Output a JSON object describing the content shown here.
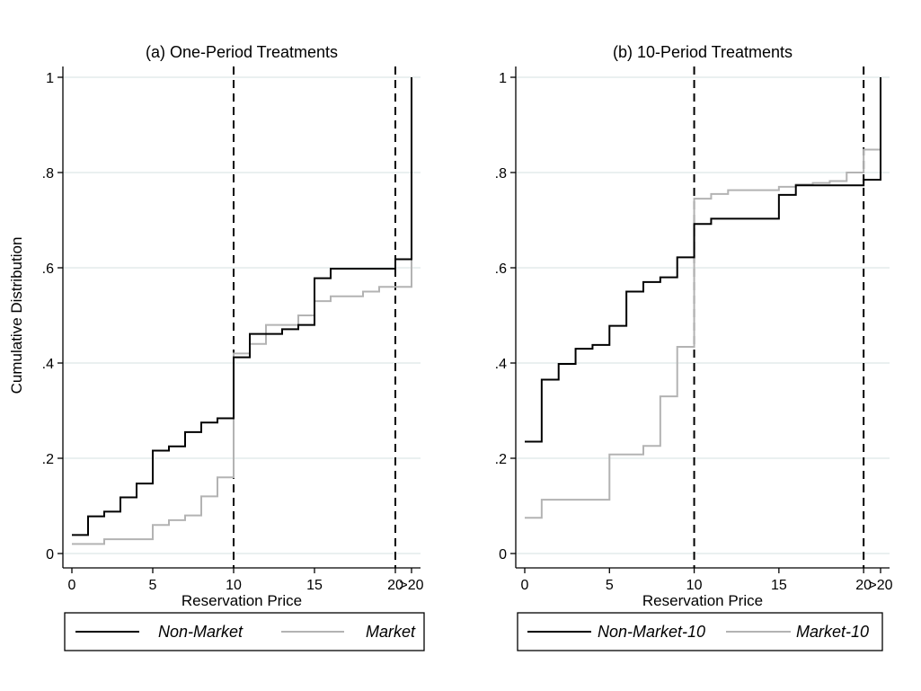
{
  "chart_data": [
    {
      "type": "line",
      "title": "(a) One-Period Treatments",
      "xlabel": "Reservation Price",
      "ylabel": "Cumulative Distribution",
      "xlim": [
        0,
        21
      ],
      "ylim": [
        0,
        1
      ],
      "x_ticks": [
        {
          "value": 0,
          "label": "0"
        },
        {
          "value": 5,
          "label": "5"
        },
        {
          "value": 10,
          "label": "10"
        },
        {
          "value": 15,
          "label": "15"
        },
        {
          "value": 20,
          "label": "20"
        },
        {
          "value": 21,
          "label": ">20"
        }
      ],
      "y_ticks": [
        {
          "value": 0,
          "label": "0"
        },
        {
          "value": 0.2,
          "label": ".2"
        },
        {
          "value": 0.4,
          "label": ".4"
        },
        {
          "value": 0.6,
          "label": ".6"
        },
        {
          "value": 0.8,
          "label": ".8"
        },
        {
          "value": 1,
          "label": "1"
        }
      ],
      "vlines": [
        10,
        20
      ],
      "grid": true,
      "legend_position": "bottom",
      "series": [
        {
          "name": "Non-Market",
          "color": "#000000",
          "x": [
            0,
            1,
            2,
            3,
            4,
            5,
            6,
            7,
            8,
            9,
            10,
            11,
            12,
            13,
            14,
            15,
            16,
            17,
            18,
            19,
            20,
            21
          ],
          "y": [
            0.039,
            0.078,
            0.088,
            0.118,
            0.147,
            0.216,
            0.225,
            0.255,
            0.275,
            0.284,
            0.412,
            0.461,
            0.461,
            0.471,
            0.48,
            0.578,
            0.598,
            0.598,
            0.598,
            0.598,
            0.618,
            1.0
          ]
        },
        {
          "name": "Market",
          "color": "#b3b3b3",
          "x": [
            0,
            1,
            2,
            3,
            4,
            5,
            6,
            7,
            8,
            9,
            10,
            11,
            12,
            13,
            14,
            15,
            16,
            17,
            18,
            19,
            20,
            21
          ],
          "y": [
            0.02,
            0.02,
            0.03,
            0.03,
            0.03,
            0.06,
            0.07,
            0.08,
            0.12,
            0.16,
            0.42,
            0.44,
            0.48,
            0.48,
            0.5,
            0.53,
            0.54,
            0.54,
            0.55,
            0.56,
            0.56,
            1.0
          ]
        }
      ]
    },
    {
      "type": "line",
      "title": "(b) 10-Period Treatments",
      "xlabel": "Reservation Price",
      "ylabel": "",
      "xlim": [
        0,
        21
      ],
      "ylim": [
        0,
        1
      ],
      "x_ticks": [
        {
          "value": 0,
          "label": "0"
        },
        {
          "value": 5,
          "label": "5"
        },
        {
          "value": 10,
          "label": "10"
        },
        {
          "value": 15,
          "label": "15"
        },
        {
          "value": 20,
          "label": "20"
        },
        {
          "value": 21,
          "label": ">20"
        }
      ],
      "y_ticks": [
        {
          "value": 0,
          "label": "0"
        },
        {
          "value": 0.2,
          "label": ".2"
        },
        {
          "value": 0.4,
          "label": ".4"
        },
        {
          "value": 0.6,
          "label": ".6"
        },
        {
          "value": 0.8,
          "label": ".8"
        },
        {
          "value": 1,
          "label": "1"
        }
      ],
      "vlines": [
        10,
        20
      ],
      "grid": true,
      "legend_position": "bottom",
      "series": [
        {
          "name": "Non-Market-10",
          "color": "#000000",
          "x": [
            0,
            1,
            2,
            3,
            4,
            5,
            6,
            7,
            8,
            9,
            10,
            11,
            12,
            13,
            14,
            15,
            16,
            17,
            18,
            19,
            20,
            21
          ],
          "y": [
            0.235,
            0.365,
            0.398,
            0.43,
            0.438,
            0.478,
            0.55,
            0.57,
            0.58,
            0.622,
            0.692,
            0.703,
            0.703,
            0.703,
            0.703,
            0.753,
            0.773,
            0.773,
            0.773,
            0.773,
            0.785,
            1.0
          ]
        },
        {
          "name": "Market-10",
          "color": "#b3b3b3",
          "x": [
            0,
            1,
            2,
            3,
            4,
            5,
            6,
            7,
            8,
            9,
            10,
            11,
            12,
            13,
            14,
            15,
            16,
            17,
            18,
            19,
            20,
            21
          ],
          "y": [
            0.075,
            0.113,
            0.113,
            0.113,
            0.113,
            0.208,
            0.208,
            0.226,
            0.33,
            0.434,
            0.745,
            0.755,
            0.763,
            0.763,
            0.763,
            0.77,
            0.775,
            0.778,
            0.782,
            0.8,
            0.848,
            1.0
          ]
        }
      ]
    }
  ]
}
